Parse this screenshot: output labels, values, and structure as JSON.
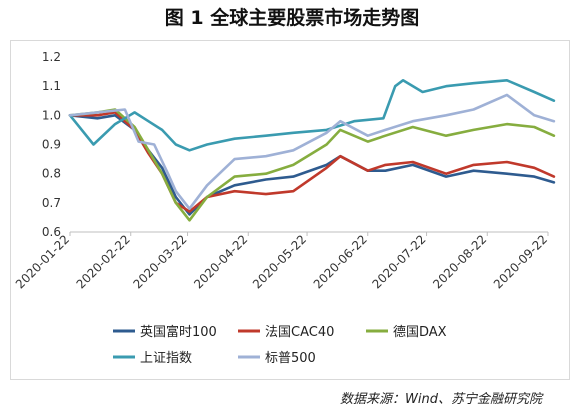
{
  "chart_data": {
    "type": "line",
    "title": "图 1  全球主要股票市场走势图",
    "source": "数据来源：Wind、苏宁金融研究院",
    "ylim": [
      0.6,
      1.2
    ],
    "yticks": [
      "0.6",
      "0.7",
      "0.8",
      "0.9",
      "1.0",
      "1.1",
      "1.2"
    ],
    "x": [
      "2020-01-22",
      "2020-02-22",
      "2020-03-22",
      "2020-04-22",
      "2020-05-22",
      "2020-06-22",
      "2020-07-22",
      "2020-08-22",
      "2020-09-22"
    ],
    "xlabels": [
      "2020-01-22",
      "2020-02-22",
      "2020-03-22",
      "2020-04-22",
      "2020-05-22",
      "2020-06-22",
      "2020-07-22",
      "2020-08-22",
      "2020-09-22"
    ],
    "grid": false,
    "legend_position": "bottom",
    "series": [
      {
        "name": "英国富时100",
        "color": "#2e5b8f",
        "x": [
          "2020-01-22",
          "2020-02-05",
          "2020-02-14",
          "2020-02-24",
          "2020-03-02",
          "2020-03-09",
          "2020-03-16",
          "2020-03-23",
          "2020-04-01",
          "2020-04-15",
          "2020-05-01",
          "2020-05-15",
          "2020-06-01",
          "2020-06-08",
          "2020-06-22",
          "2020-07-01",
          "2020-07-15",
          "2020-08-01",
          "2020-08-15",
          "2020-09-01",
          "2020-09-15",
          "2020-09-25"
        ],
        "values": [
          1.0,
          0.99,
          1.0,
          0.95,
          0.88,
          0.82,
          0.72,
          0.66,
          0.72,
          0.76,
          0.78,
          0.79,
          0.83,
          0.86,
          0.81,
          0.81,
          0.83,
          0.79,
          0.81,
          0.8,
          0.79,
          0.77
        ]
      },
      {
        "name": "法国CAC40",
        "color": "#c0392b",
        "x": [
          "2020-01-22",
          "2020-02-05",
          "2020-02-14",
          "2020-02-24",
          "2020-03-02",
          "2020-03-09",
          "2020-03-16",
          "2020-03-23",
          "2020-04-01",
          "2020-04-15",
          "2020-05-01",
          "2020-05-15",
          "2020-06-01",
          "2020-06-08",
          "2020-06-22",
          "2020-07-01",
          "2020-07-15",
          "2020-08-01",
          "2020-08-15",
          "2020-09-01",
          "2020-09-15",
          "2020-09-25"
        ],
        "values": [
          1.0,
          1.0,
          1.01,
          0.95,
          0.87,
          0.8,
          0.7,
          0.67,
          0.72,
          0.74,
          0.73,
          0.74,
          0.82,
          0.86,
          0.81,
          0.83,
          0.84,
          0.8,
          0.83,
          0.84,
          0.82,
          0.79
        ]
      },
      {
        "name": "德国DAX",
        "color": "#86ad3f",
        "x": [
          "2020-01-22",
          "2020-02-05",
          "2020-02-14",
          "2020-02-24",
          "2020-03-02",
          "2020-03-09",
          "2020-03-16",
          "2020-03-23",
          "2020-04-01",
          "2020-04-15",
          "2020-05-01",
          "2020-05-15",
          "2020-06-01",
          "2020-06-08",
          "2020-06-22",
          "2020-07-01",
          "2020-07-15",
          "2020-08-01",
          "2020-08-15",
          "2020-09-01",
          "2020-09-15",
          "2020-09-25"
        ],
        "values": [
          1.0,
          1.01,
          1.02,
          0.96,
          0.88,
          0.8,
          0.7,
          0.64,
          0.72,
          0.79,
          0.8,
          0.83,
          0.9,
          0.95,
          0.91,
          0.93,
          0.96,
          0.93,
          0.95,
          0.97,
          0.96,
          0.93
        ]
      },
      {
        "name": "上证指数",
        "color": "#3a9bb0",
        "x": [
          "2020-01-22",
          "2020-02-03",
          "2020-02-14",
          "2020-02-24",
          "2020-03-02",
          "2020-03-09",
          "2020-03-16",
          "2020-03-23",
          "2020-04-01",
          "2020-04-15",
          "2020-05-01",
          "2020-05-15",
          "2020-06-01",
          "2020-06-15",
          "2020-06-30",
          "2020-07-06",
          "2020-07-10",
          "2020-07-20",
          "2020-08-01",
          "2020-08-15",
          "2020-09-01",
          "2020-09-15",
          "2020-09-25"
        ],
        "values": [
          1.0,
          0.9,
          0.97,
          1.01,
          0.98,
          0.95,
          0.9,
          0.88,
          0.9,
          0.92,
          0.93,
          0.94,
          0.95,
          0.98,
          0.99,
          1.1,
          1.12,
          1.08,
          1.1,
          1.11,
          1.12,
          1.08,
          1.05
        ]
      },
      {
        "name": "标普500",
        "color": "#9fb1d6",
        "x": [
          "2020-01-22",
          "2020-02-05",
          "2020-02-19",
          "2020-02-26",
          "2020-03-05",
          "2020-03-12",
          "2020-03-16",
          "2020-03-23",
          "2020-04-01",
          "2020-04-15",
          "2020-05-01",
          "2020-05-15",
          "2020-06-01",
          "2020-06-08",
          "2020-06-22",
          "2020-07-01",
          "2020-07-15",
          "2020-08-01",
          "2020-08-15",
          "2020-09-01",
          "2020-09-15",
          "2020-09-25"
        ],
        "values": [
          1.0,
          1.01,
          1.02,
          0.91,
          0.9,
          0.8,
          0.74,
          0.68,
          0.76,
          0.85,
          0.86,
          0.88,
          0.94,
          0.98,
          0.93,
          0.95,
          0.98,
          1.0,
          1.02,
          1.07,
          1.0,
          0.98
        ]
      }
    ]
  }
}
